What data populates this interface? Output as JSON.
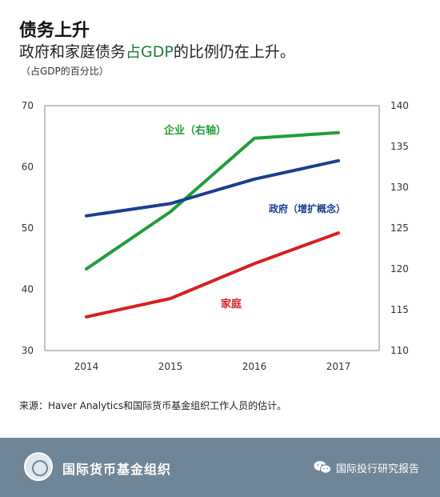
{
  "header": {
    "title": "债务上升",
    "subtitle_pre": "政府和家庭债务",
    "subtitle_hl": "占GDP",
    "subtitle_post": "的比例仍在上升。",
    "unit": "（占GDP的百分比）"
  },
  "chart_data": {
    "type": "line",
    "x": [
      "2014",
      "2015",
      "2016",
      "2017"
    ],
    "y_left": {
      "ylim": [
        30,
        70
      ],
      "ticks": [
        "30",
        "40",
        "50",
        "60",
        "70"
      ]
    },
    "y_right": {
      "ylim": [
        110,
        140
      ],
      "ticks": [
        "110",
        "115",
        "120",
        "125",
        "130",
        "135",
        "140"
      ]
    },
    "series": [
      {
        "name": "企业（右轴）",
        "axis": "right",
        "color": "#1f9e37",
        "values": [
          120,
          127,
          136,
          136.7
        ]
      },
      {
        "name": "政府（增扩概念）",
        "axis": "left",
        "color": "#1a3f8f",
        "values": [
          52,
          54,
          58,
          61
        ]
      },
      {
        "name": "家庭",
        "axis": "left",
        "color": "#d62020",
        "values": [
          35.5,
          38.5,
          44.2,
          49.2
        ]
      }
    ],
    "grid": false
  },
  "source": "来源：Haver Analytics和国际货币基金组织工作人员的估计。",
  "footer": {
    "org_name": "国际货币基金组织",
    "account_name": "国际投行研究报告"
  }
}
